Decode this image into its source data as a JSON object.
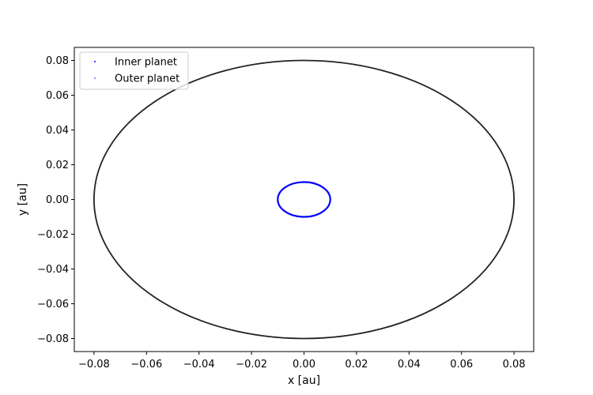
{
  "chart_data": {
    "type": "scatter",
    "title": "",
    "xlabel": "x [au]",
    "ylabel": "y [au]",
    "xlim": [
      -0.0875,
      0.0875
    ],
    "ylim": [
      -0.0875,
      0.0875
    ],
    "xticks": [
      -0.08,
      -0.06,
      -0.04,
      -0.02,
      0.0,
      0.02,
      0.04,
      0.06,
      0.08
    ],
    "yticks": [
      -0.08,
      -0.06,
      -0.04,
      -0.02,
      0.0,
      0.02,
      0.04,
      0.06,
      0.08
    ],
    "xtick_labels": [
      "−0.08",
      "−0.06",
      "−0.04",
      "−0.02",
      "0.00",
      "0.02",
      "0.04",
      "0.06",
      "0.08"
    ],
    "ytick_labels": [
      "−0.08",
      "−0.06",
      "−0.04",
      "−0.02",
      "0.00",
      "0.02",
      "0.04",
      "0.06",
      "0.08"
    ],
    "grid": false,
    "legend_position": "top-left",
    "series": [
      {
        "name": "Inner planet",
        "shape": "circular orbit",
        "center": [
          0.0,
          0.0
        ],
        "radius": 0.01,
        "color": "#0000ff"
      },
      {
        "name": "Outer planet",
        "shape": "circular orbit",
        "center": [
          0.0,
          0.0
        ],
        "radius": 0.08,
        "color": "#222222"
      }
    ]
  }
}
